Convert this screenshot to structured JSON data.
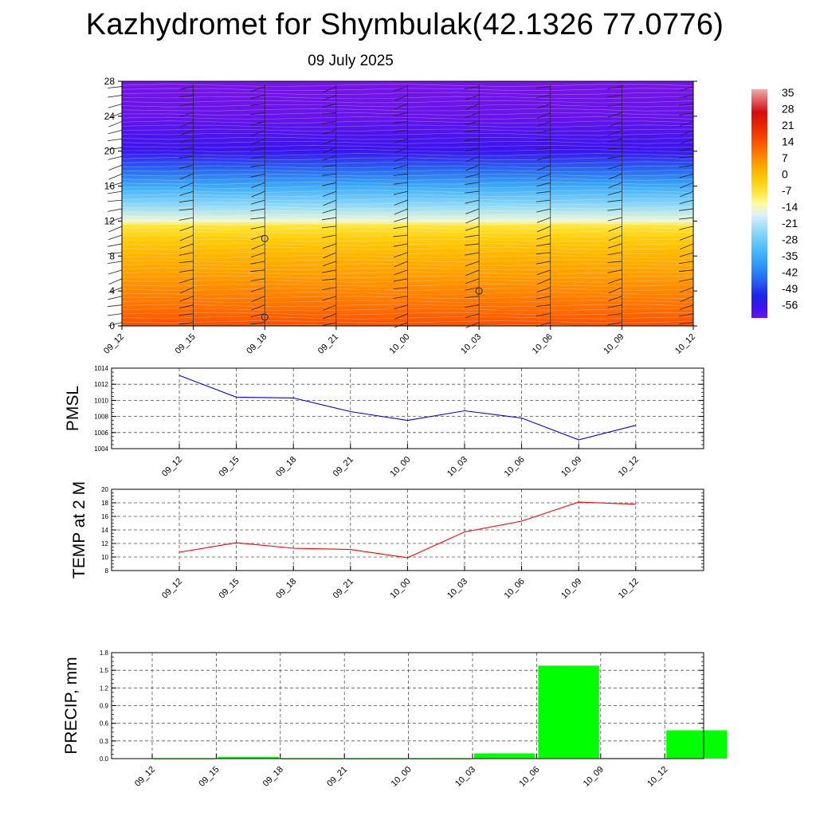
{
  "page": {
    "title": "Kazhydromet for Shymbulak(42.1326 77.0776)",
    "subtitle": "09 July 2025"
  },
  "colors": {
    "pmsl_line": "#0000ff",
    "temp_line": "#ff0000",
    "precip_bar": "#00ff00",
    "grid": "#555555"
  },
  "chart_data": [
    {
      "id": "cross-section",
      "type": "heatmap",
      "title": "",
      "xlabel": "",
      "ylabel": "",
      "x": [
        "09_12",
        "09_15",
        "09_18",
        "09_21",
        "10_00",
        "10_03",
        "10_06",
        "10_09",
        "10_12"
      ],
      "y_ticks": [
        0,
        4,
        8,
        12,
        16,
        20,
        24,
        28
      ],
      "ylim": [
        0,
        28
      ],
      "colorbar_ticks": [
        35,
        28,
        21,
        14,
        7,
        0,
        -7,
        -14,
        -21,
        -28,
        -35,
        -42,
        -49,
        -56
      ],
      "colorbar_range": [
        -60,
        38
      ],
      "temperature_by_level": [
        {
          "level": 0,
          "value": 16
        },
        {
          "level": 2,
          "value": 12
        },
        {
          "level": 4,
          "value": 9
        },
        {
          "level": 6,
          "value": 6
        },
        {
          "level": 8,
          "value": 3
        },
        {
          "level": 10,
          "value": -1
        },
        {
          "level": 11.5,
          "value": -6
        },
        {
          "level": 12,
          "value": -14
        },
        {
          "level": 14,
          "value": -24
        },
        {
          "level": 16,
          "value": -34
        },
        {
          "level": 18,
          "value": -44
        },
        {
          "level": 20,
          "value": -55
        },
        {
          "level": 22,
          "value": -57
        },
        {
          "level": 24,
          "value": -60
        },
        {
          "level": 28,
          "value": -62
        }
      ],
      "circle_markers": [
        {
          "x": "09_18",
          "level": 10
        },
        {
          "x": "09_18",
          "level": 1
        },
        {
          "x": "10_03",
          "level": 4
        }
      ]
    },
    {
      "id": "pmsl",
      "type": "line",
      "ylabel": "PMSL",
      "ylim": [
        1004,
        1014
      ],
      "y_ticks": [
        1004,
        1006,
        1008,
        1010,
        1012,
        1014
      ],
      "categories": [
        "09_12",
        "09_15",
        "09_18",
        "09_21",
        "10_00",
        "10_03",
        "10_06",
        "10_09",
        "10_12"
      ],
      "values": [
        1013.1,
        1010.4,
        1010.3,
        1008.6,
        1007.5,
        1008.7,
        1007.8,
        1005.1,
        1006.9
      ]
    },
    {
      "id": "temp2m",
      "type": "line",
      "ylabel": "TEMP at 2 M",
      "ylim": [
        8,
        20
      ],
      "y_ticks": [
        8,
        10,
        12,
        14,
        16,
        18,
        20
      ],
      "categories": [
        "09_12",
        "09_15",
        "09_18",
        "09_21",
        "10_00",
        "10_03",
        "10_06",
        "10_09",
        "10_12"
      ],
      "values": [
        10.7,
        12.1,
        11.3,
        11.1,
        9.9,
        13.7,
        15.3,
        18.1,
        17.8
      ]
    },
    {
      "id": "precip",
      "type": "bar",
      "ylabel": "PRECIP, mm",
      "ylim": [
        0,
        1.8
      ],
      "y_ticks": [
        "0.0",
        "0.3",
        "0.6",
        "0.9",
        "1.2",
        "1.5",
        "1.8"
      ],
      "categories": [
        "09_12",
        "09_15",
        "09_18",
        "09_21",
        "10_00",
        "10_03",
        "10_06",
        "10_09",
        "10_12"
      ],
      "values": [
        0,
        0.03,
        0,
        0,
        0,
        0.09,
        1.58,
        0.01,
        0.48
      ]
    }
  ]
}
